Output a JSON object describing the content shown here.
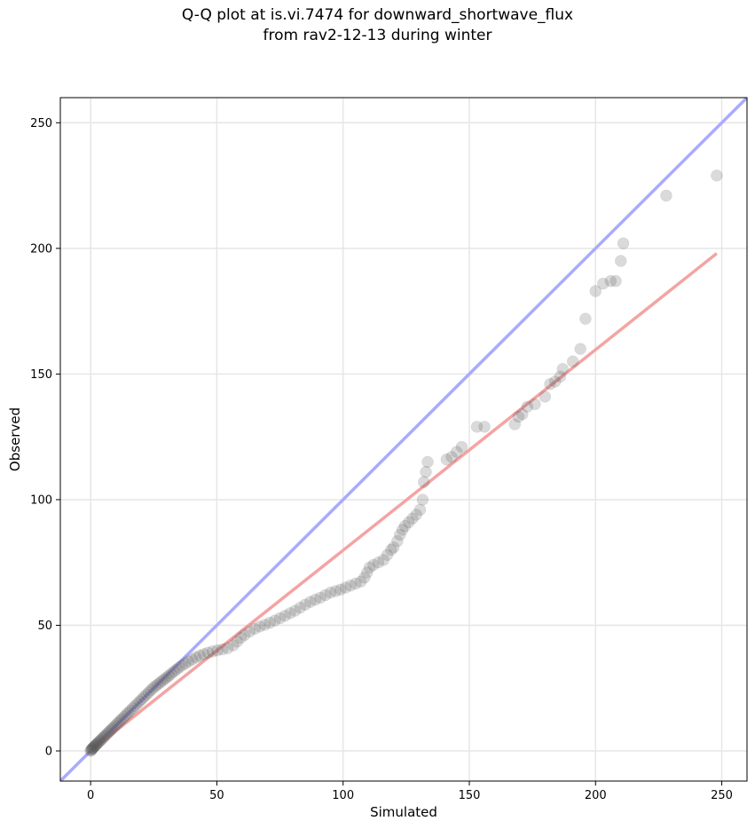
{
  "chart_data": {
    "type": "scatter",
    "title_line1": "Q-Q plot at is.vi.7474 for downward_shortwave_flux",
    "title_line2": "from rav2-12-13 during winter",
    "xlabel": "Simulated",
    "ylabel": "Observed",
    "xlim": [
      -12,
      260
    ],
    "ylim": [
      -12,
      260
    ],
    "xticks": [
      0,
      50,
      100,
      150,
      200,
      250
    ],
    "yticks": [
      0,
      50,
      100,
      150,
      200,
      250
    ],
    "grid": true,
    "reference_line": {
      "color": "#aaaaff",
      "from": [
        -12,
        -12
      ],
      "to": [
        260,
        260
      ]
    },
    "fit_line": {
      "color": "#f4a3a3",
      "from": [
        0,
        0
      ],
      "to": [
        248,
        198
      ]
    },
    "points": [
      [
        0,
        0
      ],
      [
        0.2,
        0.3
      ],
      [
        0.4,
        0.6
      ],
      [
        0.6,
        0.8
      ],
      [
        0.8,
        1.0
      ],
      [
        1.0,
        1.3
      ],
      [
        1.3,
        1.6
      ],
      [
        1.6,
        1.9
      ],
      [
        1.9,
        2.2
      ],
      [
        2.2,
        2.5
      ],
      [
        2.5,
        2.8
      ],
      [
        2.9,
        3.2
      ],
      [
        3.3,
        3.6
      ],
      [
        3.7,
        4.0
      ],
      [
        4.1,
        4.4
      ],
      [
        4.6,
        4.9
      ],
      [
        5.1,
        5.4
      ],
      [
        5.6,
        5.9
      ],
      [
        6.1,
        6.4
      ],
      [
        6.7,
        7.0
      ],
      [
        7.3,
        7.6
      ],
      [
        7.9,
        8.2
      ],
      [
        8.5,
        8.8
      ],
      [
        9.1,
        9.4
      ],
      [
        9.8,
        10.1
      ],
      [
        10.5,
        10.8
      ],
      [
        11.2,
        11.5
      ],
      [
        11.9,
        12.2
      ],
      [
        12.6,
        12.9
      ],
      [
        13.4,
        13.7
      ],
      [
        14.2,
        14.5
      ],
      [
        15.0,
        15.3
      ],
      [
        15.8,
        16.1
      ],
      [
        16.7,
        17.0
      ],
      [
        17.6,
        17.9
      ],
      [
        18.5,
        18.8
      ],
      [
        19.4,
        19.7
      ],
      [
        20.3,
        20.6
      ],
      [
        21.2,
        21.5
      ],
      [
        22.1,
        22.4
      ],
      [
        23.0,
        23.3
      ],
      [
        23.9,
        24.2
      ],
      [
        24.8,
        25.1
      ],
      [
        25.7,
        25.8
      ],
      [
        26.6,
        26.5
      ],
      [
        27.5,
        27.2
      ],
      [
        28.4,
        27.9
      ],
      [
        29.3,
        28.6
      ],
      [
        30.2,
        29.3
      ],
      [
        31.1,
        30.0
      ],
      [
        32.0,
        30.8
      ],
      [
        33.0,
        31.6
      ],
      [
        34.0,
        32.4
      ],
      [
        35.0,
        33.2
      ],
      [
        36.2,
        34.0
      ],
      [
        37.5,
        34.8
      ],
      [
        38.8,
        35.6
      ],
      [
        40.2,
        36.4
      ],
      [
        41.7,
        37.2
      ],
      [
        43.2,
        37.9
      ],
      [
        44.8,
        38.5
      ],
      [
        46.5,
        39.1
      ],
      [
        48.3,
        39.6
      ],
      [
        50.2,
        40.0
      ],
      [
        52.2,
        40.4
      ],
      [
        54.3,
        40.9
      ],
      [
        56.5,
        42.0
      ],
      [
        58.0,
        43.5
      ],
      [
        59.5,
        45.0
      ],
      [
        61.0,
        46.2
      ],
      [
        63.0,
        47.5
      ],
      [
        65.0,
        48.6
      ],
      [
        67.0,
        49.5
      ],
      [
        69.0,
        50.2
      ],
      [
        71.0,
        51.0
      ],
      [
        73.0,
        51.9
      ],
      [
        75.0,
        52.8
      ],
      [
        77.0,
        53.8
      ],
      [
        79.0,
        54.8
      ],
      [
        81.0,
        55.8
      ],
      [
        83.0,
        57.0
      ],
      [
        85.0,
        58.2
      ],
      [
        87.0,
        59.3
      ],
      [
        89.0,
        60.2
      ],
      [
        91.0,
        61.0
      ],
      [
        93.0,
        62.0
      ],
      [
        95.0,
        63.0
      ],
      [
        97.0,
        63.6
      ],
      [
        99.0,
        64.2
      ],
      [
        101.0,
        65.0
      ],
      [
        103.0,
        65.8
      ],
      [
        105.0,
        66.6
      ],
      [
        107.0,
        67.4
      ],
      [
        108.5,
        69.0
      ],
      [
        109.5,
        71.0
      ],
      [
        110.5,
        73.0
      ],
      [
        112.0,
        74.0
      ],
      [
        114.0,
        75.0
      ],
      [
        116.0,
        76.0
      ],
      [
        117.5,
        78.0
      ],
      [
        119.0,
        80.0
      ],
      [
        120.0,
        81.0
      ],
      [
        121.5,
        83.5
      ],
      [
        122.5,
        86.0
      ],
      [
        123.5,
        88.0
      ],
      [
        124.5,
        89.5
      ],
      [
        126.0,
        91.0
      ],
      [
        127.5,
        92.5
      ],
      [
        129.0,
        94.0
      ],
      [
        130.5,
        96.0
      ],
      [
        131.5,
        100.0
      ],
      [
        132.0,
        107.0
      ],
      [
        132.8,
        111.0
      ],
      [
        133.5,
        115.0
      ],
      [
        141.0,
        116.0
      ],
      [
        143.0,
        117.0
      ],
      [
        145.0,
        119.0
      ],
      [
        147.0,
        121.0
      ],
      [
        153.0,
        129.0
      ],
      [
        156.0,
        129.0
      ],
      [
        168.0,
        130.0
      ],
      [
        169.5,
        133.0
      ],
      [
        171.0,
        134.0
      ],
      [
        173.0,
        137.0
      ],
      [
        176.0,
        138.0
      ],
      [
        180.0,
        141.0
      ],
      [
        182.0,
        146.0
      ],
      [
        184.0,
        147.0
      ],
      [
        186.0,
        149.0
      ],
      [
        187.0,
        152.0
      ],
      [
        191.0,
        155.0
      ],
      [
        194.0,
        160.0
      ],
      [
        196.0,
        172.0
      ],
      [
        200.0,
        183.0
      ],
      [
        203.0,
        186.0
      ],
      [
        206.0,
        187.0
      ],
      [
        208.0,
        187.0
      ],
      [
        210.0,
        195.0
      ],
      [
        211.0,
        202.0
      ],
      [
        228.0,
        221.0
      ],
      [
        248.0,
        229.0
      ]
    ]
  }
}
